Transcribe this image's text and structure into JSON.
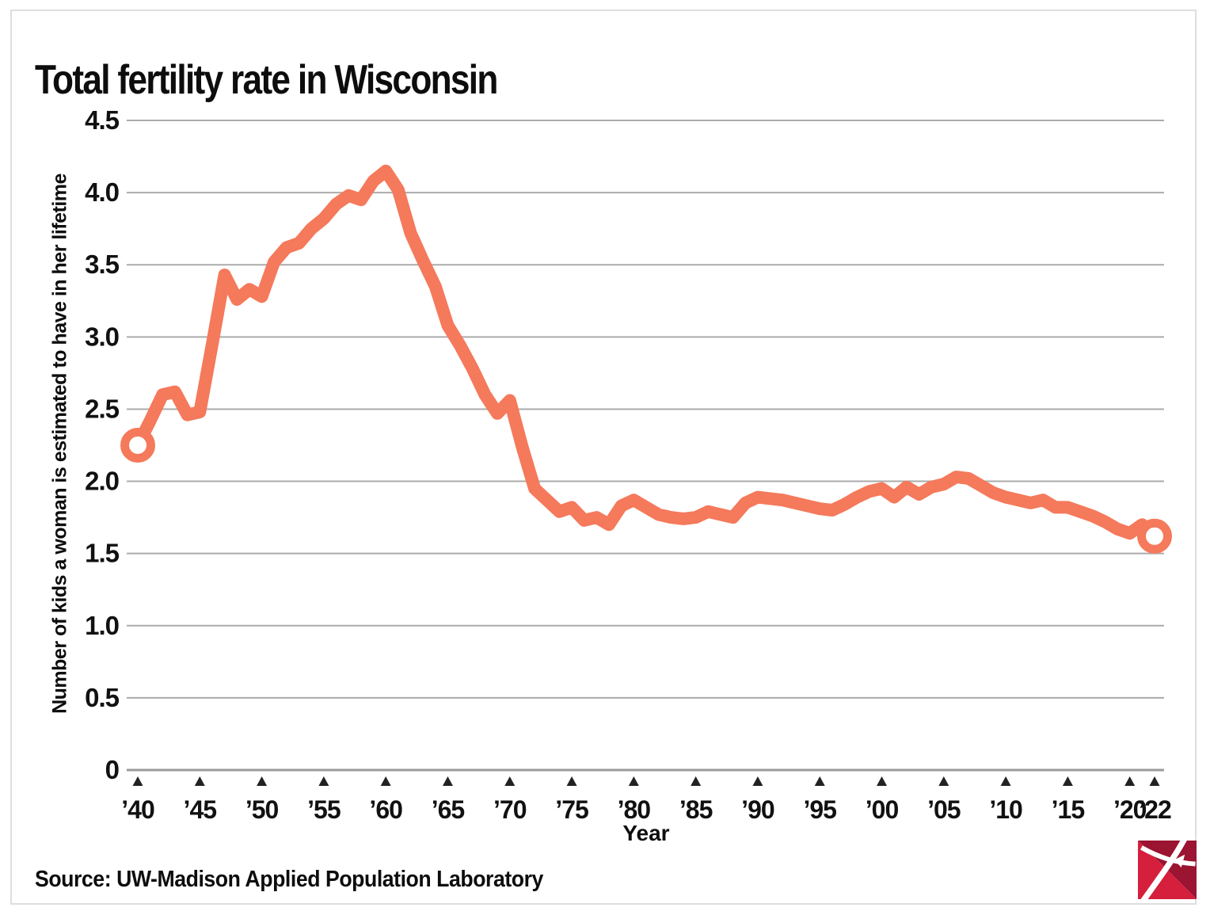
{
  "page": {
    "title": "Total fertility rate in Wisconsin",
    "source": "Source: UW-Madison Applied Population Laboratory"
  },
  "chart_data": {
    "type": "line",
    "title": "Total fertility rate in Wisconsin",
    "xlabel": "Year",
    "ylabel": "Number of kids a woman is estimated to have in her lifetime",
    "xlim": [
      1940,
      2022
    ],
    "ylim": [
      0,
      4.5
    ],
    "grid": true,
    "legend": false,
    "line_color": "#F5795B",
    "grid_color": "#ABABAB",
    "axis_color": "#9B9B9B",
    "tick_marker": "triangle-up",
    "endpoint_marker": "open-circle",
    "y_ticks": [
      {
        "value": 0,
        "label": "0"
      },
      {
        "value": 0.5,
        "label": "0.5"
      },
      {
        "value": 1,
        "label": "1.0"
      },
      {
        "value": 1.5,
        "label": "1.5"
      },
      {
        "value": 2,
        "label": "2.0"
      },
      {
        "value": 2.5,
        "label": "2.5"
      },
      {
        "value": 3,
        "label": "3.0"
      },
      {
        "value": 3.5,
        "label": "3.5"
      },
      {
        "value": 4,
        "label": "4.0"
      },
      {
        "value": 4.5,
        "label": "4.5"
      }
    ],
    "x_ticks": [
      {
        "year": 1940,
        "label": "’40"
      },
      {
        "year": 1945,
        "label": "’45"
      },
      {
        "year": 1950,
        "label": "’50"
      },
      {
        "year": 1955,
        "label": "’55"
      },
      {
        "year": 1960,
        "label": "’60"
      },
      {
        "year": 1965,
        "label": "’65"
      },
      {
        "year": 1970,
        "label": "’70"
      },
      {
        "year": 1975,
        "label": "’75"
      },
      {
        "year": 1980,
        "label": "’80"
      },
      {
        "year": 1985,
        "label": "’85"
      },
      {
        "year": 1990,
        "label": "’90"
      },
      {
        "year": 1995,
        "label": "’95"
      },
      {
        "year": 2000,
        "label": "’00"
      },
      {
        "year": 2005,
        "label": "’05"
      },
      {
        "year": 2010,
        "label": "’10"
      },
      {
        "year": 2015,
        "label": "’15"
      },
      {
        "year": 2020,
        "label": "’20"
      },
      {
        "year": 2022,
        "label": "’22"
      }
    ],
    "series": [
      {
        "name": "Total fertility rate",
        "years": [
          1940,
          1941,
          1942,
          1943,
          1944,
          1945,
          1946,
          1947,
          1948,
          1949,
          1950,
          1951,
          1952,
          1953,
          1954,
          1955,
          1956,
          1957,
          1958,
          1959,
          1960,
          1961,
          1962,
          1963,
          1964,
          1965,
          1966,
          1967,
          1968,
          1969,
          1970,
          1971,
          1972,
          1973,
          1974,
          1975,
          1976,
          1977,
          1978,
          1979,
          1980,
          1981,
          1982,
          1983,
          1984,
          1985,
          1986,
          1987,
          1988,
          1989,
          1990,
          1991,
          1992,
          1993,
          1994,
          1995,
          1996,
          1997,
          1998,
          1999,
          2000,
          2001,
          2002,
          2003,
          2004,
          2005,
          2006,
          2007,
          2008,
          2009,
          2010,
          2011,
          2012,
          2013,
          2014,
          2015,
          2016,
          2017,
          2018,
          2019,
          2020,
          2021,
          2022
        ],
        "values": [
          2.25,
          2.42,
          2.6,
          2.62,
          2.46,
          2.48,
          2.95,
          3.43,
          3.26,
          3.33,
          3.28,
          3.52,
          3.62,
          3.65,
          3.75,
          3.82,
          3.92,
          3.98,
          3.95,
          4.08,
          4.15,
          4.02,
          3.72,
          3.53,
          3.35,
          3.08,
          2.94,
          2.78,
          2.6,
          2.47,
          2.56,
          2.24,
          1.95,
          1.87,
          1.79,
          1.82,
          1.73,
          1.75,
          1.7,
          1.83,
          1.87,
          1.82,
          1.77,
          1.75,
          1.74,
          1.75,
          1.79,
          1.77,
          1.75,
          1.85,
          1.89,
          1.88,
          1.87,
          1.85,
          1.83,
          1.81,
          1.8,
          1.84,
          1.89,
          1.93,
          1.95,
          1.89,
          1.96,
          1.91,
          1.96,
          1.98,
          2.03,
          2.02,
          1.97,
          1.92,
          1.89,
          1.87,
          1.85,
          1.87,
          1.82,
          1.82,
          1.79,
          1.76,
          1.72,
          1.67,
          1.64,
          1.7,
          1.62
        ]
      }
    ]
  },
  "logo": {
    "name": "publisher logo",
    "color_bright": "#D51F3C",
    "color_dark": "#9B1431"
  }
}
